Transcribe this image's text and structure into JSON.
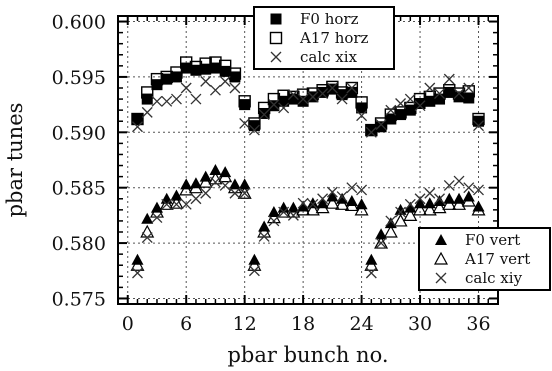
{
  "chart_data": {
    "type": "scatter",
    "title": "",
    "xlabel": "pbar bunch no.",
    "ylabel": "pbar tunes",
    "xlim": [
      -1,
      38
    ],
    "ylim": [
      0.5745,
      0.6005
    ],
    "grid": true,
    "xticks": [
      "0",
      "6",
      "12",
      "18",
      "24",
      "30",
      "36"
    ],
    "yticks": [
      "0.575",
      "0.580",
      "0.585",
      "0.590",
      "0.595",
      "0.600"
    ],
    "legends": [
      {
        "position": "top-center",
        "entries": [
          "F0 horz",
          "A17 horz",
          "calc xix"
        ]
      },
      {
        "position": "bottom-right",
        "entries": [
          "F0 vert",
          "A17 vert",
          "calc xiy"
        ]
      }
    ],
    "series": [
      {
        "name": "F0 horz",
        "marker": "filled-square",
        "x": [
          1,
          2,
          3,
          4,
          5,
          6,
          7,
          8,
          9,
          10,
          11,
          12,
          13,
          14,
          15,
          16,
          17,
          18,
          19,
          20,
          21,
          22,
          23,
          24,
          25,
          26,
          27,
          28,
          29,
          30,
          31,
          32,
          33,
          34,
          35,
          36
        ],
        "y": [
          0.5912,
          0.593,
          0.5943,
          0.5948,
          0.595,
          0.5958,
          0.5956,
          0.5957,
          0.5958,
          0.5955,
          0.595,
          0.5925,
          0.5906,
          0.5917,
          0.5924,
          0.5928,
          0.593,
          0.5928,
          0.5932,
          0.5936,
          0.5939,
          0.5934,
          0.5936,
          0.5922,
          0.5902,
          0.5905,
          0.5912,
          0.5916,
          0.592,
          0.5926,
          0.5928,
          0.593,
          0.5936,
          0.5932,
          0.5931,
          0.591
        ]
      },
      {
        "name": "A17 horz",
        "marker": "open-square",
        "x": [
          1,
          2,
          3,
          4,
          5,
          6,
          7,
          8,
          9,
          10,
          11,
          12,
          13,
          14,
          15,
          16,
          17,
          18,
          19,
          20,
          21,
          22,
          23,
          24,
          25,
          26,
          27,
          28,
          29,
          30,
          31,
          32,
          33,
          34,
          35,
          36
        ],
        "y": [
          0.5912,
          0.5936,
          0.5948,
          0.595,
          0.5954,
          0.5963,
          0.5959,
          0.5962,
          0.5963,
          0.596,
          0.5953,
          0.5928,
          0.5908,
          0.5922,
          0.593,
          0.5933,
          0.5932,
          0.5934,
          0.5935,
          0.5938,
          0.5941,
          0.5936,
          0.594,
          0.5927,
          0.5902,
          0.5908,
          0.5916,
          0.5918,
          0.5922,
          0.593,
          0.5932,
          0.5935,
          0.5938,
          0.5935,
          0.5937,
          0.5912
        ]
      },
      {
        "name": "calc xix",
        "marker": "cross",
        "x": [
          1,
          2,
          3,
          4,
          5,
          6,
          7,
          8,
          9,
          10,
          11,
          12,
          13,
          14,
          15,
          16,
          17,
          18,
          19,
          20,
          21,
          22,
          23,
          24,
          25,
          26,
          27,
          28,
          29,
          30,
          31,
          32,
          33,
          34,
          35,
          36
        ],
        "y": [
          0.5905,
          0.5918,
          0.5928,
          0.5928,
          0.593,
          0.594,
          0.593,
          0.5946,
          0.5938,
          0.5946,
          0.594,
          0.5908,
          0.5902,
          0.5916,
          0.5925,
          0.5922,
          0.5934,
          0.593,
          0.5932,
          0.5935,
          0.594,
          0.593,
          0.594,
          0.5915,
          0.59,
          0.5907,
          0.592,
          0.5926,
          0.593,
          0.5924,
          0.594,
          0.5935,
          0.5948,
          0.5935,
          0.594,
          0.5906
        ]
      },
      {
        "name": "F0 vert",
        "marker": "filled-triangle",
        "x": [
          1,
          2,
          3,
          4,
          5,
          6,
          7,
          8,
          9,
          10,
          11,
          12,
          13,
          14,
          15,
          16,
          17,
          18,
          19,
          20,
          21,
          22,
          23,
          24,
          25,
          26,
          27,
          28,
          29,
          30,
          31,
          32,
          33,
          34,
          35,
          36
        ],
        "y": [
          0.5785,
          0.5822,
          0.5832,
          0.584,
          0.5843,
          0.5853,
          0.5854,
          0.586,
          0.5866,
          0.5864,
          0.5853,
          0.5853,
          0.5785,
          0.5815,
          0.5828,
          0.5832,
          0.5832,
          0.5833,
          0.5836,
          0.5836,
          0.5842,
          0.584,
          0.5838,
          0.5835,
          0.5785,
          0.5808,
          0.5818,
          0.583,
          0.5832,
          0.5836,
          0.5836,
          0.5838,
          0.584,
          0.584,
          0.5842,
          0.5833
        ]
      },
      {
        "name": "A17 vert",
        "marker": "open-triangle",
        "x": [
          1,
          2,
          3,
          4,
          5,
          6,
          7,
          8,
          9,
          10,
          11,
          12,
          13,
          14,
          15,
          16,
          17,
          18,
          19,
          20,
          21,
          22,
          23,
          24,
          25,
          26,
          27,
          28,
          29,
          30,
          31,
          32,
          33,
          34,
          35,
          36
        ],
        "y": [
          0.578,
          0.581,
          0.5828,
          0.5835,
          0.5836,
          0.5848,
          0.585,
          0.5855,
          0.5858,
          0.586,
          0.585,
          0.5845,
          0.578,
          0.581,
          0.5823,
          0.5828,
          0.5828,
          0.583,
          0.583,
          0.5832,
          0.5836,
          0.5835,
          0.5834,
          0.583,
          0.578,
          0.58,
          0.581,
          0.582,
          0.5825,
          0.583,
          0.583,
          0.5832,
          0.5835,
          0.5835,
          0.5838,
          0.583
        ]
      },
      {
        "name": "calc xiy",
        "marker": "cross",
        "x": [
          1,
          2,
          3,
          4,
          5,
          6,
          7,
          8,
          9,
          10,
          11,
          12,
          13,
          14,
          15,
          16,
          17,
          18,
          19,
          20,
          21,
          22,
          23,
          24,
          25,
          26,
          27,
          28,
          29,
          30,
          31,
          32,
          33,
          34,
          35,
          36
        ],
        "y": [
          0.5773,
          0.5805,
          0.5823,
          0.5835,
          0.5835,
          0.5835,
          0.584,
          0.5845,
          0.5855,
          0.5852,
          0.5845,
          0.5845,
          0.5775,
          0.5806,
          0.582,
          0.5828,
          0.5825,
          0.5836,
          0.5835,
          0.584,
          0.5846,
          0.5842,
          0.585,
          0.5848,
          0.5773,
          0.58,
          0.582,
          0.5828,
          0.5835,
          0.584,
          0.5845,
          0.584,
          0.5852,
          0.5856,
          0.585,
          0.5848
        ]
      }
    ]
  }
}
